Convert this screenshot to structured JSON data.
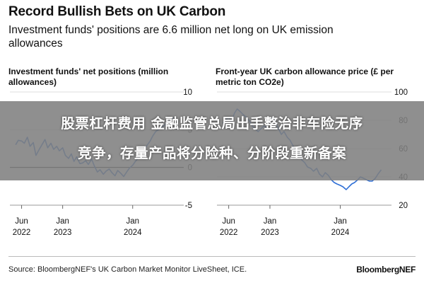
{
  "header": {
    "title": "Record Bullish Bets on UK Carbon",
    "subtitle": "Investment funds' positions are 6.6 million net long on UK emission allowances"
  },
  "overlay": {
    "line1": "股票杠杆费用 金融监管总局出手整治非车险无序",
    "line2": "竞争，存量产品将分险种、分阶段重新备案"
  },
  "footer": {
    "source": "Source: BloombergNEF's UK Carbon Market Monitor LiveSheet, ICE.",
    "brand": "BloombergNEF"
  },
  "colors": {
    "line": "#2f6fd6",
    "zero_line": "#000000",
    "grid": "#dddddd"
  },
  "chart_data": [
    {
      "type": "line",
      "title": "Investment funds' net positions (million allowances)",
      "x_tick_labels": [
        [
          "Jun",
          "2022"
        ],
        [
          "Jan",
          "2023"
        ],
        [
          "Jan",
          "2024"
        ]
      ],
      "x_tick_dates": [
        "2022-06-01",
        "2023-01-01",
        "2024-01-01"
      ],
      "xlim": [
        "2022-04-01",
        "2024-09-01"
      ],
      "ylim": [
        -5,
        10
      ],
      "y_ticks": [
        10,
        5,
        0,
        -5
      ],
      "y_tick_labels": [
        "10",
        "5",
        "0",
        "-5"
      ],
      "zero_line": true,
      "series": [
        {
          "x": [
            "2022-05-01",
            "2022-05-15",
            "2022-06-01",
            "2022-06-15",
            "2022-07-01",
            "2022-07-15",
            "2022-08-01",
            "2022-08-15",
            "2022-09-01",
            "2022-09-15",
            "2022-10-01",
            "2022-10-15",
            "2022-11-01",
            "2022-11-15",
            "2022-12-01",
            "2022-12-15",
            "2023-01-01",
            "2023-01-15",
            "2023-02-01",
            "2023-02-15",
            "2023-03-01",
            "2023-03-15",
            "2023-04-01",
            "2023-04-15",
            "2023-05-01",
            "2023-05-15",
            "2023-06-01",
            "2023-06-15",
            "2023-07-01",
            "2023-07-15",
            "2023-08-01",
            "2023-08-15",
            "2023-09-01",
            "2023-09-15",
            "2023-10-01",
            "2023-10-15",
            "2023-11-01",
            "2023-11-15",
            "2023-12-01",
            "2023-12-15",
            "2024-01-01",
            "2024-01-15",
            "2024-02-01",
            "2024-02-15",
            "2024-03-01",
            "2024-03-15",
            "2024-04-01",
            "2024-04-15",
            "2024-05-01",
            "2024-05-15",
            "2024-06-01",
            "2024-06-15",
            "2024-07-01",
            "2024-07-15",
            "2024-08-01"
          ],
          "y": [
            3.0,
            3.6,
            3.5,
            3.2,
            4.0,
            2.8,
            3.3,
            1.6,
            2.4,
            3.0,
            3.7,
            2.6,
            3.2,
            2.4,
            2.8,
            2.2,
            2.6,
            1.6,
            1.2,
            1.8,
            0.8,
            1.4,
            0.5,
            0.6,
            0.9,
            0.4,
            1.1,
            0.2,
            -0.6,
            -0.3,
            -0.9,
            -0.5,
            -0.2,
            -0.7,
            -1.1,
            -0.4,
            -0.8,
            -1.2,
            -0.6,
            -0.1,
            0.3,
            0.8,
            1.3,
            1.7,
            2.3,
            2.9,
            3.5,
            4.2,
            4.8,
            5.0,
            5.3,
            5.6,
            6.0,
            6.3,
            6.6
          ]
        }
      ]
    },
    {
      "type": "line",
      "title": "Front-year UK carbon allowance price (£ per metric ton CO2e)",
      "x_tick_labels": [
        [
          "Jun",
          "2022"
        ],
        [
          "Jan",
          "2023"
        ],
        [
          "Jan",
          "2024"
        ]
      ],
      "x_tick_dates": [
        "2022-06-01",
        "2023-01-01",
        "2024-01-01"
      ],
      "xlim": [
        "2022-04-01",
        "2024-09-01"
      ],
      "ylim": [
        20,
        100
      ],
      "y_ticks": [
        100,
        80,
        60,
        40,
        20
      ],
      "y_tick_labels": [
        "100",
        "80",
        "60",
        "40",
        "20"
      ],
      "zero_line": false,
      "series": [
        {
          "x": [
            "2022-05-01",
            "2022-05-15",
            "2022-06-01",
            "2022-06-15",
            "2022-07-01",
            "2022-07-15",
            "2022-08-01",
            "2022-08-15",
            "2022-09-01",
            "2022-09-15",
            "2022-10-01",
            "2022-10-15",
            "2022-11-01",
            "2022-11-15",
            "2022-12-01",
            "2022-12-15",
            "2023-01-01",
            "2023-01-15",
            "2023-02-01",
            "2023-02-15",
            "2023-03-01",
            "2023-03-15",
            "2023-04-01",
            "2023-04-15",
            "2023-05-01",
            "2023-05-15",
            "2023-06-01",
            "2023-06-15",
            "2023-07-01",
            "2023-07-15",
            "2023-08-01",
            "2023-08-15",
            "2023-09-01",
            "2023-09-15",
            "2023-10-01",
            "2023-10-15",
            "2023-11-01",
            "2023-11-15",
            "2023-12-01",
            "2023-12-15",
            "2024-01-01",
            "2024-01-15",
            "2024-02-01",
            "2024-02-15",
            "2024-03-01",
            "2024-03-15",
            "2024-04-01",
            "2024-04-15",
            "2024-05-01",
            "2024-05-15",
            "2024-06-01",
            "2024-06-15",
            "2024-07-01",
            "2024-07-15",
            "2024-08-01"
          ],
          "y": [
            78,
            80,
            82,
            79,
            85,
            88,
            86,
            84,
            82,
            80,
            76,
            74,
            72,
            74,
            76,
            75,
            80,
            82,
            78,
            74,
            70,
            72,
            68,
            66,
            62,
            58,
            56,
            52,
            50,
            47,
            46,
            44,
            46,
            42,
            40,
            43,
            41,
            38,
            36,
            35,
            34,
            33,
            31,
            33,
            35,
            36,
            38,
            40,
            39,
            38,
            37,
            37,
            39,
            42,
            45
          ]
        }
      ]
    }
  ]
}
